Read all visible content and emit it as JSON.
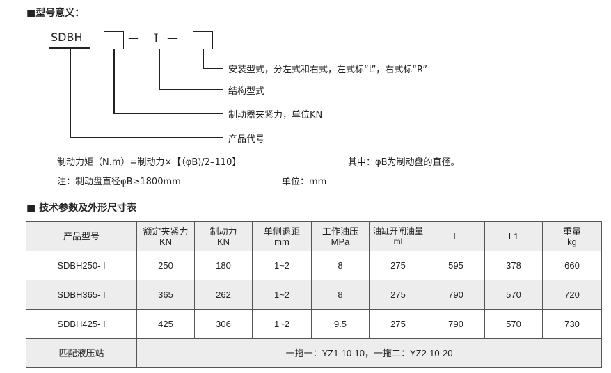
{
  "section1": {
    "title": "■型号意义：",
    "code": "SDBH",
    "dash": "—",
    "roman": "I",
    "labels": [
      "安装型式，分左式和右式，左式标“L”，右式标“R”",
      "结构型式",
      "制动器夹紧力，单位KN",
      "产品代号"
    ],
    "formula": "制动力矩（N.m）=制动力×【（φB)/2–110】",
    "formula_note": "其中：φB为制动盘的直径。",
    "note": "注：制动盘直径φB≥1800mm",
    "unit": "单位：mm"
  },
  "section2": {
    "title": "■ 技术参数及外形尺寸表"
  },
  "table": {
    "headers": [
      [
        "产品型号",
        ""
      ],
      [
        "额定夹紧力",
        "KN"
      ],
      [
        "制动力",
        "KN"
      ],
      [
        "单侧退距",
        "mm"
      ],
      [
        "工作油压",
        "MPa"
      ],
      [
        "油缸开闸油量",
        "ml"
      ],
      [
        "L",
        ""
      ],
      [
        "L1",
        ""
      ],
      [
        "重量",
        "kg"
      ]
    ],
    "rows": [
      [
        "SDBH250- I",
        "250",
        "180",
        "1~2",
        "8",
        "275",
        "595",
        "378",
        "660"
      ],
      [
        "SDBH365- I",
        "365",
        "262",
        "1~2",
        "8",
        "275",
        "790",
        "570",
        "720"
      ],
      [
        "SDBH425- I",
        "425",
        "306",
        "1~2",
        "9.5",
        "275",
        "790",
        "570",
        "730"
      ]
    ],
    "footer": {
      "label": "匹配液压站",
      "value": "一拖一：YZ1-10-10，一拖二：YZ2-10-20"
    }
  }
}
